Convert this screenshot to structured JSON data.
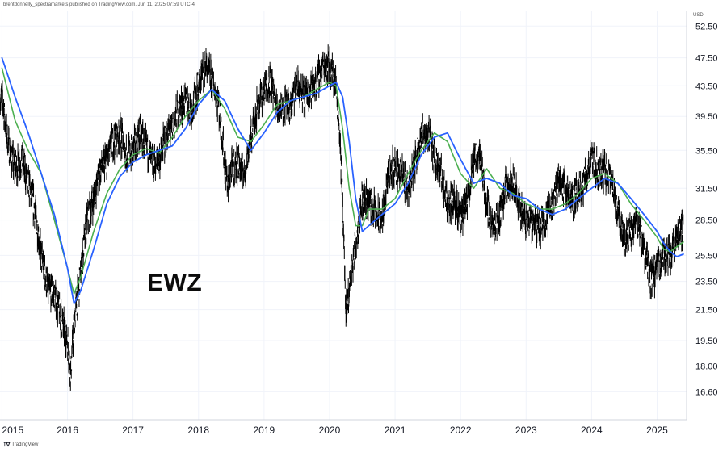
{
  "header": {
    "credit": "brentdonnelly_spectramarkets published on TradingView.com, Jun 11, 2025 07:59 UTC-4"
  },
  "annotation": {
    "ticker": "EWZ"
  },
  "footer": {
    "logo_icon": "tradingview-logo-icon",
    "brand": "TradingView"
  },
  "colors": {
    "price": "#000000",
    "ma_fast": "#4caf50",
    "ma_slow": "#2962ff",
    "grid": "#f0f3fa"
  },
  "chart_data": {
    "type": "line",
    "title": "",
    "xlabel": "",
    "ylabel": "",
    "y_unit": "USD",
    "grid": true,
    "legend": "none",
    "x_range": [
      2014.97,
      2025.45
    ],
    "y_range": [
      15.2,
      55.0
    ],
    "y_scale": "log",
    "x_ticks": [
      "2015",
      "2016",
      "2017",
      "2018",
      "2019",
      "2020",
      "2021",
      "2022",
      "2023",
      "2024",
      "2025"
    ],
    "y_ticks": [
      "52.50",
      "47.50",
      "43.50",
      "39.50",
      "35.50",
      "31.50",
      "28.50",
      "25.50",
      "23.50",
      "21.50",
      "19.50",
      "18.00",
      "16.60"
    ],
    "series": [
      {
        "id": "price",
        "x": [
          2015.0,
          2015.1,
          2015.2,
          2015.3,
          2015.4,
          2015.5,
          2015.6,
          2015.7,
          2015.8,
          2015.9,
          2016.0,
          2016.05,
          2016.1,
          2016.2,
          2016.3,
          2016.4,
          2016.5,
          2016.6,
          2016.7,
          2016.8,
          2016.9,
          2017.0,
          2017.1,
          2017.2,
          2017.3,
          2017.4,
          2017.5,
          2017.6,
          2017.7,
          2017.8,
          2017.9,
          2018.0,
          2018.1,
          2018.2,
          2018.3,
          2018.4,
          2018.45,
          2018.5,
          2018.6,
          2018.7,
          2018.8,
          2018.9,
          2019.0,
          2019.1,
          2019.2,
          2019.3,
          2019.4,
          2019.5,
          2019.6,
          2019.7,
          2019.8,
          2019.9,
          2020.0,
          2020.1,
          2020.15,
          2020.2,
          2020.25,
          2020.3,
          2020.4,
          2020.5,
          2020.6,
          2020.7,
          2020.8,
          2020.9,
          2021.0,
          2021.1,
          2021.2,
          2021.3,
          2021.4,
          2021.5,
          2021.6,
          2021.7,
          2021.8,
          2021.9,
          2022.0,
          2022.1,
          2022.2,
          2022.3,
          2022.4,
          2022.5,
          2022.6,
          2022.7,
          2022.8,
          2022.9,
          2023.0,
          2023.1,
          2023.2,
          2023.3,
          2023.4,
          2023.5,
          2023.6,
          2023.7,
          2023.8,
          2023.9,
          2024.0,
          2024.1,
          2024.2,
          2024.3,
          2024.4,
          2024.5,
          2024.6,
          2024.7,
          2024.8,
          2024.9,
          2025.0,
          2025.1,
          2025.2,
          2025.3,
          2025.4
        ],
        "y": [
          42.0,
          36.0,
          33.5,
          34.5,
          32.0,
          29.5,
          25.5,
          23.0,
          22.5,
          21.0,
          19.5,
          17.6,
          20.5,
          24.0,
          28.5,
          30.5,
          33.5,
          34.5,
          36.5,
          37.5,
          35.0,
          35.5,
          37.5,
          36.0,
          34.0,
          34.5,
          37.0,
          38.0,
          40.5,
          41.5,
          40.5,
          43.5,
          46.5,
          44.5,
          41.5,
          34.0,
          31.5,
          33.5,
          34.0,
          33.0,
          37.0,
          41.0,
          43.0,
          44.5,
          40.5,
          41.0,
          40.5,
          43.5,
          42.0,
          43.0,
          44.0,
          46.5,
          46.5,
          43.5,
          38.0,
          30.0,
          21.0,
          23.0,
          26.5,
          30.5,
          30.5,
          29.0,
          28.5,
          32.5,
          34.0,
          33.0,
          31.5,
          34.0,
          37.5,
          37.5,
          35.0,
          33.0,
          30.0,
          30.5,
          28.5,
          30.0,
          34.5,
          35.0,
          30.0,
          27.5,
          29.0,
          32.0,
          32.5,
          29.5,
          28.5,
          28.5,
          28.0,
          28.5,
          30.0,
          32.5,
          31.5,
          30.5,
          31.0,
          32.5,
          34.5,
          33.0,
          33.5,
          32.0,
          29.5,
          27.0,
          27.5,
          28.5,
          26.0,
          23.5,
          24.5,
          25.5,
          25.5,
          27.0,
          27.8
        ]
      },
      {
        "id": "ma_fast",
        "x": [
          2015.0,
          2015.2,
          2015.4,
          2015.6,
          2015.8,
          2016.0,
          2016.1,
          2016.2,
          2016.4,
          2016.6,
          2016.8,
          2017.0,
          2017.2,
          2017.4,
          2017.6,
          2017.8,
          2018.0,
          2018.2,
          2018.4,
          2018.6,
          2018.8,
          2019.0,
          2019.2,
          2019.4,
          2019.6,
          2019.8,
          2020.0,
          2020.1,
          2020.2,
          2020.3,
          2020.4,
          2020.5,
          2020.6,
          2020.8,
          2021.0,
          2021.2,
          2021.4,
          2021.6,
          2021.8,
          2022.0,
          2022.2,
          2022.4,
          2022.6,
          2022.8,
          2023.0,
          2023.2,
          2023.4,
          2023.6,
          2023.8,
          2024.0,
          2024.2,
          2024.4,
          2024.6,
          2024.8,
          2025.0,
          2025.1,
          2025.2,
          2025.3,
          2025.4
        ],
        "y": [
          46.0,
          39.0,
          35.5,
          33.0,
          28.5,
          24.5,
          22.6,
          23.8,
          27.5,
          31.0,
          33.5,
          35.0,
          35.7,
          35.2,
          37.0,
          39.5,
          41.5,
          43.0,
          40.5,
          37.0,
          36.5,
          38.5,
          41.0,
          41.5,
          42.0,
          43.0,
          44.0,
          43.5,
          38.0,
          31.5,
          28.0,
          28.0,
          29.5,
          29.5,
          30.5,
          33.0,
          35.5,
          37.5,
          36.5,
          33.0,
          31.5,
          33.5,
          31.5,
          31.0,
          30.0,
          29.5,
          29.5,
          30.0,
          31.0,
          32.5,
          33.0,
          32.0,
          30.0,
          28.5,
          27.0,
          26.0,
          25.8,
          26.2,
          26.6
        ]
      },
      {
        "id": "ma_slow",
        "x": [
          2015.0,
          2015.2,
          2015.4,
          2015.6,
          2015.8,
          2016.0,
          2016.1,
          2016.2,
          2016.4,
          2016.6,
          2016.8,
          2017.0,
          2017.2,
          2017.4,
          2017.6,
          2017.8,
          2018.0,
          2018.2,
          2018.4,
          2018.6,
          2018.8,
          2019.0,
          2019.2,
          2019.4,
          2019.6,
          2019.8,
          2020.0,
          2020.1,
          2020.2,
          2020.3,
          2020.4,
          2020.5,
          2020.6,
          2020.8,
          2021.0,
          2021.2,
          2021.4,
          2021.6,
          2021.8,
          2022.0,
          2022.2,
          2022.4,
          2022.6,
          2022.8,
          2023.0,
          2023.2,
          2023.4,
          2023.6,
          2023.8,
          2024.0,
          2024.2,
          2024.4,
          2024.6,
          2024.8,
          2025.0,
          2025.1,
          2025.2,
          2025.3,
          2025.4
        ],
        "y": [
          47.5,
          42.0,
          37.5,
          33.0,
          29.0,
          24.5,
          21.9,
          22.8,
          26.0,
          30.0,
          32.7,
          34.2,
          35.0,
          35.5,
          36.0,
          38.0,
          41.0,
          43.0,
          41.5,
          38.0,
          35.5,
          37.5,
          40.0,
          41.5,
          42.0,
          42.5,
          43.5,
          44.0,
          42.0,
          36.5,
          30.5,
          27.5,
          28.0,
          29.0,
          30.0,
          32.0,
          35.0,
          37.0,
          37.5,
          34.5,
          32.0,
          32.5,
          32.0,
          30.8,
          30.5,
          29.5,
          29.0,
          29.5,
          30.5,
          31.5,
          32.5,
          32.0,
          30.5,
          29.0,
          27.5,
          26.5,
          25.8,
          25.4,
          25.6
        ]
      }
    ]
  }
}
